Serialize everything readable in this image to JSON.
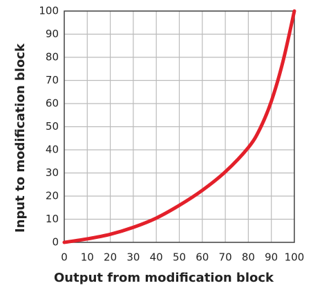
{
  "chart_data": {
    "type": "line",
    "x_label": "Output from modification block",
    "y_label": "Input to modification block",
    "x": [
      0,
      10,
      20,
      30,
      40,
      50,
      60,
      70,
      80,
      85,
      90,
      95,
      100
    ],
    "values": [
      0,
      1.5,
      3.5,
      6.5,
      10.5,
      16,
      22.5,
      30.5,
      41,
      49,
      61,
      78,
      100
    ],
    "color": "#e3202a",
    "xlim": [
      0,
      100
    ],
    "xticks": [
      0,
      10,
      20,
      30,
      40,
      50,
      60,
      70,
      80,
      90,
      100
    ],
    "ylim": [
      0,
      100
    ],
    "yticks": [
      0,
      10,
      20,
      30,
      40,
      50,
      60,
      70,
      80,
      90,
      100
    ],
    "grid": true
  }
}
